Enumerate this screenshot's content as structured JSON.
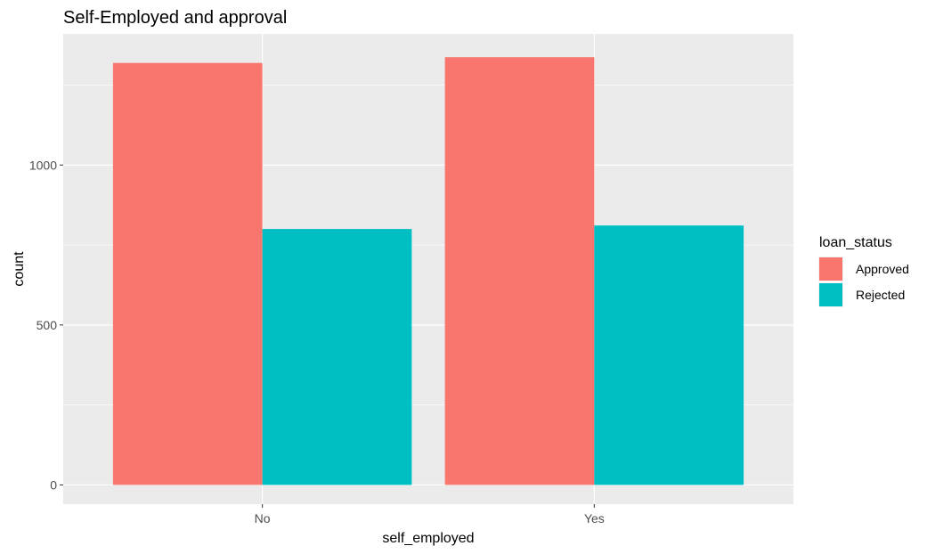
{
  "chart_data": {
    "type": "bar",
    "title": "Self-Employed and approval",
    "xlabel": "self_employed",
    "ylabel": "count",
    "categories": [
      "No",
      "Yes"
    ],
    "series": [
      {
        "name": "Approved",
        "color": "#F8766D",
        "values": [
          1319,
          1337
        ]
      },
      {
        "name": "Rejected",
        "color": "#00BFC4",
        "values": [
          800,
          811
        ]
      }
    ],
    "ylim": [
      -60,
      1410
    ],
    "yticks": [
      0,
      500,
      1000
    ],
    "ytick_labels": [
      "0",
      "500",
      "1000"
    ],
    "grid": true,
    "legend": {
      "title": "loan_status",
      "position": "right"
    }
  }
}
